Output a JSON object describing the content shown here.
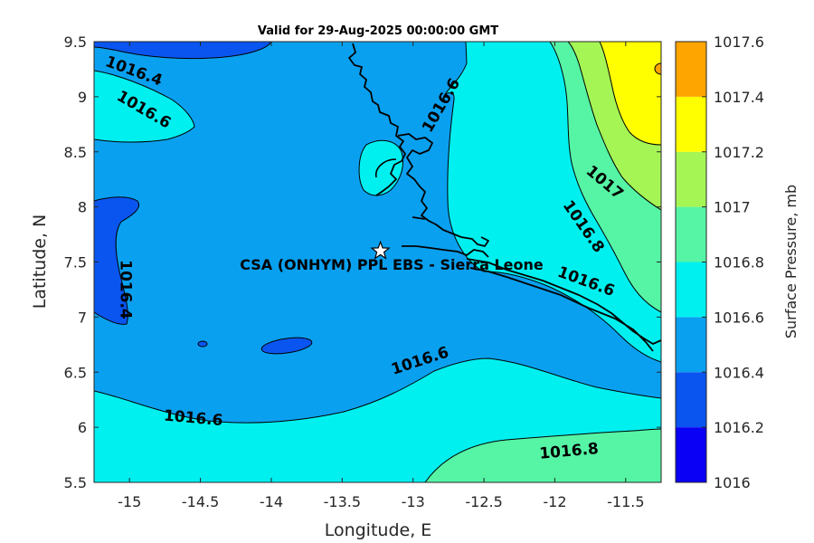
{
  "title": "Valid for 29-Aug-2025 00:00:00 GMT",
  "x_axis": {
    "label": "Longitude, E",
    "range": [
      -15.25,
      -11.25
    ],
    "ticks": [
      -15,
      -14.5,
      -14,
      -13.5,
      -13,
      -12.5,
      -12,
      -11.5
    ],
    "tick_labels": [
      "-15",
      "-14.5",
      "-14",
      "-13.5",
      "-13",
      "-12.5",
      "-12",
      "-11.5"
    ]
  },
  "y_axis": {
    "label": "Latitude, N",
    "range": [
      5.5,
      9.5
    ],
    "ticks": [
      5.5,
      6,
      6.5,
      7,
      7.5,
      8,
      8.5,
      9,
      9.5
    ],
    "tick_labels": [
      "5.5",
      "6",
      "6.5",
      "7",
      "7.5",
      "8",
      "8.5",
      "9",
      "9.5"
    ]
  },
  "colorbar": {
    "label": "Surface Pressure, mb",
    "levels": [
      1016,
      1016.2,
      1016.4,
      1016.6,
      1016.8,
      1017,
      1017.2,
      1017.4,
      1017.6
    ],
    "tick_labels": [
      "1016",
      "1016.2",
      "1016.4",
      "1016.6",
      "1016.8",
      "1017",
      "1017.2",
      "1017.4",
      "1017.6"
    ],
    "colors": [
      "#0a00f5",
      "#0a55f0",
      "#0aa0f0",
      "#00f0f0",
      "#55f5a5",
      "#a5f555",
      "#ffff00",
      "#ffa500",
      "#ff5500"
    ]
  },
  "station": {
    "label": "CSA (ONHYM) PPL EBS  - Sierra Leone",
    "lon": -13.23,
    "lat": 7.6
  },
  "contour_labels": [
    {
      "text": "1016.4",
      "lon": -14.97,
      "lat": 9.23,
      "rotate": 20
    },
    {
      "text": "1016.6",
      "lon": -14.9,
      "lat": 8.88,
      "rotate": 30
    },
    {
      "text": "1016.6",
      "lon": -12.8,
      "lat": 8.92,
      "rotate": -60
    },
    {
      "text": "1017",
      "lon": -11.65,
      "lat": 8.22,
      "rotate": 40
    },
    {
      "text": "1016.8",
      "lon": -11.8,
      "lat": 7.82,
      "rotate": 55
    },
    {
      "text": "1016.6",
      "lon": -11.78,
      "lat": 7.32,
      "rotate": 20
    },
    {
      "text": "1016.4",
      "lon": -15.03,
      "lat": 7.25,
      "rotate": 90
    },
    {
      "text": "1016.6",
      "lon": -12.95,
      "lat": 6.6,
      "rotate": -18
    },
    {
      "text": "1016.6",
      "lon": -14.55,
      "lat": 6.08,
      "rotate": 5
    },
    {
      "text": "1016.8",
      "lon": -11.9,
      "lat": 5.78,
      "rotate": -5
    }
  ],
  "chart_data": {
    "type": "heatmap",
    "title": "Valid for 29-Aug-2025 00:00:00 GMT",
    "xlabel": "Longitude, E",
    "ylabel": "Latitude, N",
    "xlim": [
      -15.25,
      -11.25
    ],
    "ylim": [
      5.5,
      9.5
    ],
    "colorbar_label": "Surface Pressure, mb",
    "levels": [
      1016,
      1016.2,
      1016.4,
      1016.6,
      1016.8,
      1017,
      1017.2,
      1017.4,
      1017.6
    ],
    "grid": false,
    "legend_placement": "right"
  }
}
